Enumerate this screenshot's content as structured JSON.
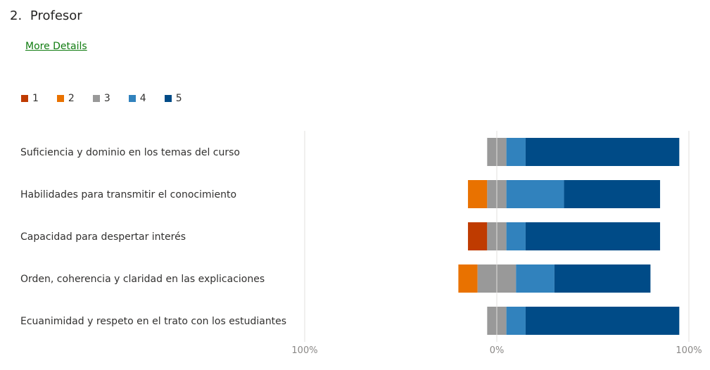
{
  "question": {
    "number": "2.",
    "title": "Profesor"
  },
  "more_details_label": "More Details",
  "chart_data": {
    "type": "bar",
    "orientation": "horizontal",
    "layout": "diverging-stacked",
    "legend_position": "top-left",
    "grid": false,
    "xlim": [
      -100,
      100
    ],
    "x_ticks": [
      -100,
      0,
      100
    ],
    "x_tick_labels": [
      "100%",
      "0%",
      "100%"
    ],
    "categories": [
      "Suficiencia y dominio en los temas del curso",
      "Habilidades para transmitir el conocimiento",
      "Capacidad para despertar interés",
      "Orden, coherencia y claridad en las explicaciones",
      "Ecuanimidad y respeto en el trato con los estudiantes"
    ],
    "series": [
      {
        "name": "1",
        "color": "#bf3b00",
        "values": [
          0,
          0,
          10,
          0,
          0
        ]
      },
      {
        "name": "2",
        "color": "#e97200",
        "values": [
          0,
          10,
          0,
          10,
          0
        ]
      },
      {
        "name": "3",
        "color": "#999999",
        "values": [
          10,
          10,
          10,
          20,
          10
        ]
      },
      {
        "name": "4",
        "color": "#3182bd",
        "values": [
          10,
          30,
          10,
          20,
          10
        ]
      },
      {
        "name": "5",
        "color": "#004b87",
        "values": [
          80,
          50,
          70,
          50,
          80
        ]
      }
    ]
  }
}
